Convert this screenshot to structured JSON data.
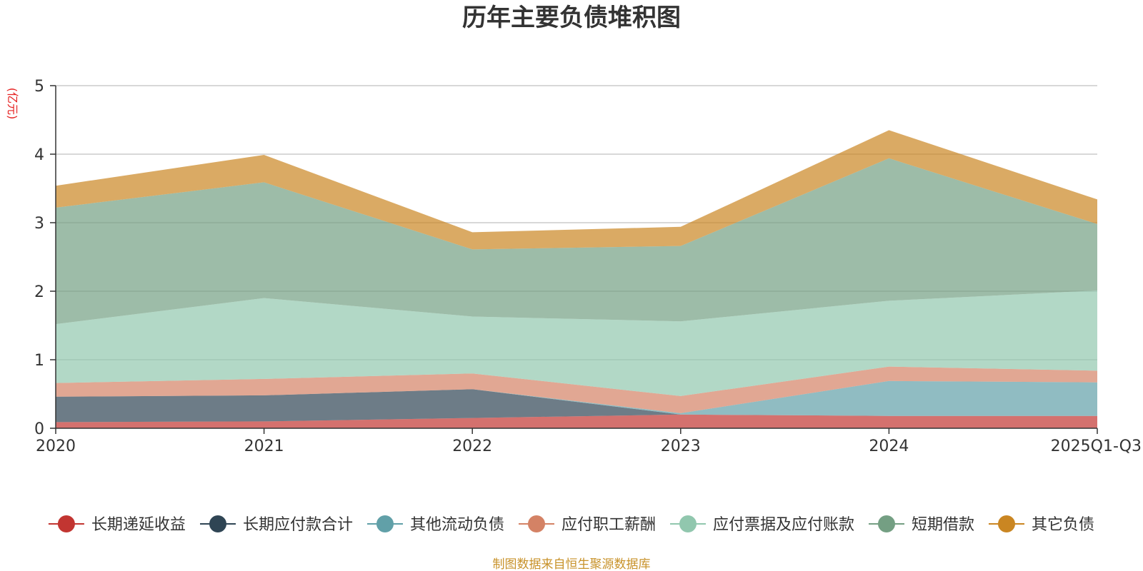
{
  "chart_data": {
    "type": "area",
    "stacked": true,
    "title": "历年主要负债堆积图",
    "ylabel": "(亿元)",
    "xlabel": "",
    "ylim": [
      0,
      5
    ],
    "yticks": [
      "0",
      "1",
      "2",
      "3",
      "4",
      "5"
    ],
    "categories": [
      "2020",
      "2021",
      "2022",
      "2023",
      "2024",
      "2025Q1-Q3"
    ],
    "grid": true,
    "legend_position": "bottom",
    "series": [
      {
        "name": "长期递延收益",
        "color": "#c23531",
        "values": [
          0.09,
          0.1,
          0.15,
          0.2,
          0.18,
          0.18
        ]
      },
      {
        "name": "长期应付款合计",
        "color": "#2f4554",
        "values": [
          0.37,
          0.38,
          0.42,
          0.0,
          0.0,
          0.0
        ]
      },
      {
        "name": "其他流动负债",
        "color": "#61a0a8",
        "values": [
          0.0,
          0.0,
          0.0,
          0.02,
          0.51,
          0.49
        ]
      },
      {
        "name": "应付职工薪酬",
        "color": "#d48265",
        "values": [
          0.2,
          0.24,
          0.23,
          0.25,
          0.21,
          0.17
        ]
      },
      {
        "name": "应付票据及应付账款",
        "color": "#91c7ae",
        "values": [
          0.86,
          1.18,
          0.83,
          1.09,
          0.96,
          1.17
        ]
      },
      {
        "name": "短期借款",
        "color": "#749f83",
        "values": [
          1.7,
          1.69,
          0.98,
          1.1,
          2.08,
          0.97
        ]
      },
      {
        "name": "其它负债",
        "color": "#ca8622",
        "values": [
          0.32,
          0.4,
          0.25,
          0.28,
          0.41,
          0.36
        ]
      }
    ],
    "source_note": "制图数据来自恒生聚源数据库"
  }
}
